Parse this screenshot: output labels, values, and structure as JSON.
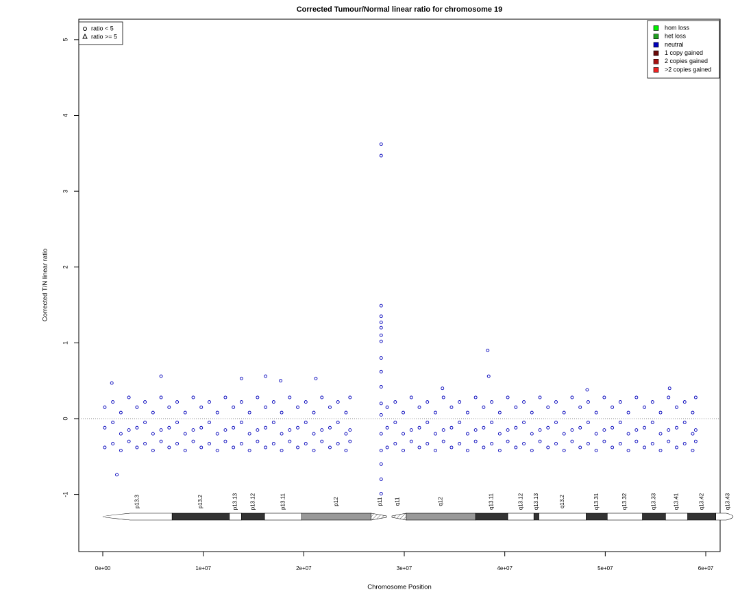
{
  "chart_data": {
    "type": "scatter",
    "title": "Corrected Tumour/Normal linear ratio for chromosome  19",
    "x_label": "Chromosome Position",
    "y_label": "Corrected T/N linear ratio",
    "xlim": [
      -2386000,
      61430000
    ],
    "ylim": [
      -1.754,
      5.27
    ],
    "xticks": [
      {
        "value": 0,
        "label": "0e+00"
      },
      {
        "value": 10000000,
        "label": "1e+07"
      },
      {
        "value": 20000000,
        "label": "2e+07"
      },
      {
        "value": 30000000,
        "label": "3e+07"
      },
      {
        "value": 40000000,
        "label": "4e+07"
      },
      {
        "value": 50000000,
        "label": "5e+07"
      },
      {
        "value": 60000000,
        "label": "6e+07"
      }
    ],
    "yticks": [
      -1,
      0,
      1,
      2,
      3,
      4,
      5
    ],
    "hline": 0,
    "shape_legend": [
      "ratio < 5",
      "ratio >= 5"
    ],
    "series": [
      {
        "name": "hom loss",
        "color": "#00ee00",
        "x": [],
        "values": []
      },
      {
        "name": "het loss",
        "color": "#1f9f1f",
        "x": [],
        "values": []
      },
      {
        "name": "neutral",
        "color": "#0000bb",
        "x": [
          200000.0,
          200000.0,
          200000.0,
          1000000.0,
          1000000.0,
          1000000.0,
          1800000.0,
          1800000.0,
          1800000.0,
          2600000.0,
          2600000.0,
          2600000.0,
          3400000.0,
          3400000.0,
          3400000.0,
          4200000.0,
          4200000.0,
          4200000.0,
          5000000.0,
          5000000.0,
          5000000.0,
          5800000.0,
          5800000.0,
          5800000.0,
          6600000.0,
          6600000.0,
          6600000.0,
          7400000.0,
          7400000.0,
          7400000.0,
          8200000.0,
          8200000.0,
          8200000.0,
          9000000.0,
          9000000.0,
          9000000.0,
          9800000.0,
          9800000.0,
          9800000.0,
          10600000.0,
          10600000.0,
          10600000.0,
          11400000.0,
          11400000.0,
          11400000.0,
          12200000.0,
          12200000.0,
          12200000.0,
          13000000.0,
          13000000.0,
          13000000.0,
          13800000.0,
          13800000.0,
          13800000.0,
          14600000.0,
          14600000.0,
          14600000.0,
          15400000.0,
          15400000.0,
          15400000.0,
          16200000.0,
          16200000.0,
          16200000.0,
          17000000.0,
          17000000.0,
          17000000.0,
          17800000.0,
          17800000.0,
          17800000.0,
          18600000.0,
          18600000.0,
          18600000.0,
          19400000.0,
          19400000.0,
          19400000.0,
          20200000.0,
          20200000.0,
          20200000.0,
          21000000.0,
          21000000.0,
          21000000.0,
          21800000.0,
          21800000.0,
          21800000.0,
          22600000.0,
          22600000.0,
          22600000.0,
          23400000.0,
          23400000.0,
          23400000.0,
          24200000.0,
          24200000.0,
          24200000.0,
          24600000.0,
          24600000.0,
          24600000.0,
          28300000.0,
          28300000.0,
          28300000.0,
          29100000.0,
          29100000.0,
          29100000.0,
          29900000.0,
          29900000.0,
          29900000.0,
          30700000.0,
          30700000.0,
          30700000.0,
          31500000.0,
          31500000.0,
          31500000.0,
          32300000.0,
          32300000.0,
          32300000.0,
          33100000.0,
          33100000.0,
          33100000.0,
          33900000.0,
          33900000.0,
          33900000.0,
          34700000.0,
          34700000.0,
          34700000.0,
          35500000.0,
          35500000.0,
          35500000.0,
          36300000.0,
          36300000.0,
          36300000.0,
          37100000.0,
          37100000.0,
          37100000.0,
          37900000.0,
          37900000.0,
          37900000.0,
          38700000.0,
          38700000.0,
          38700000.0,
          39500000.0,
          39500000.0,
          39500000.0,
          40300000.0,
          40300000.0,
          40300000.0,
          41100000.0,
          41100000.0,
          41100000.0,
          41900000.0,
          41900000.0,
          41900000.0,
          42700000.0,
          42700000.0,
          42700000.0,
          43500000.0,
          43500000.0,
          43500000.0,
          44300000.0,
          44300000.0,
          44300000.0,
          45100000.0,
          45100000.0,
          45100000.0,
          45900000.0,
          45900000.0,
          45900000.0,
          46700000.0,
          46700000.0,
          46700000.0,
          47500000.0,
          47500000.0,
          47500000.0,
          48300000.0,
          48300000.0,
          48300000.0,
          49100000.0,
          49100000.0,
          49100000.0,
          49900000.0,
          49900000.0,
          49900000.0,
          50700000.0,
          50700000.0,
          50700000.0,
          51500000.0,
          51500000.0,
          51500000.0,
          52300000.0,
          52300000.0,
          52300000.0,
          53100000.0,
          53100000.0,
          53100000.0,
          53900000.0,
          53900000.0,
          53900000.0,
          54700000.0,
          54700000.0,
          54700000.0,
          55500000.0,
          55500000.0,
          55500000.0,
          56300000.0,
          56300000.0,
          56300000.0,
          57100000.0,
          57100000.0,
          57100000.0,
          57900000.0,
          57900000.0,
          57900000.0,
          58700000.0,
          58700000.0,
          58700000.0,
          59000000.0,
          59000000.0,
          59000000.0,
          27700000.0,
          27700000.0,
          27700000.0,
          27700000.0,
          27700000.0,
          27700000.0,
          27700000.0,
          27700000.0,
          27700000.0,
          27700000.0,
          27700000.0,
          27700000.0,
          27700000.0,
          27700000.0,
          27700000.0,
          27700000.0,
          27700000.0,
          27700000.0,
          1400000.0,
          900000.0,
          5800000.0,
          13800000.0,
          16200000.0,
          21200000.0,
          17700000.0,
          33800000.0,
          38300000.0,
          38400000.0,
          48200000.0,
          56400000.0
        ],
        "values": [
          0.15,
          -0.12,
          -0.38,
          0.22,
          -0.05,
          -0.33,
          0.08,
          -0.2,
          -0.42,
          0.28,
          -0.15,
          -0.3,
          0.15,
          -0.12,
          -0.38,
          0.22,
          -0.05,
          -0.33,
          0.08,
          -0.2,
          -0.42,
          0.28,
          -0.15,
          -0.3,
          0.15,
          -0.12,
          -0.38,
          0.22,
          -0.05,
          -0.33,
          0.08,
          -0.2,
          -0.42,
          0.28,
          -0.15,
          -0.3,
          0.15,
          -0.12,
          -0.38,
          0.22,
          -0.05,
          -0.33,
          0.08,
          -0.2,
          -0.42,
          0.28,
          -0.15,
          -0.3,
          0.15,
          -0.12,
          -0.38,
          0.22,
          -0.05,
          -0.33,
          0.08,
          -0.2,
          -0.42,
          0.28,
          -0.15,
          -0.3,
          0.15,
          -0.12,
          -0.38,
          0.22,
          -0.05,
          -0.33,
          0.08,
          -0.2,
          -0.42,
          0.28,
          -0.15,
          -0.3,
          0.15,
          -0.12,
          -0.38,
          0.22,
          -0.05,
          -0.33,
          0.08,
          -0.2,
          -0.42,
          0.28,
          -0.15,
          -0.3,
          0.15,
          -0.12,
          -0.38,
          0.22,
          -0.05,
          -0.33,
          0.08,
          -0.2,
          -0.42,
          0.28,
          -0.15,
          -0.3,
          0.15,
          -0.12,
          -0.38,
          0.22,
          -0.05,
          -0.33,
          0.08,
          -0.2,
          -0.42,
          0.28,
          -0.15,
          -0.3,
          0.15,
          -0.12,
          -0.38,
          0.22,
          -0.05,
          -0.33,
          0.08,
          -0.2,
          -0.42,
          0.28,
          -0.15,
          -0.3,
          0.15,
          -0.12,
          -0.38,
          0.22,
          -0.05,
          -0.33,
          0.08,
          -0.2,
          -0.42,
          0.28,
          -0.15,
          -0.3,
          0.15,
          -0.12,
          -0.38,
          0.22,
          -0.05,
          -0.33,
          0.08,
          -0.2,
          -0.42,
          0.28,
          -0.15,
          -0.3,
          0.15,
          -0.12,
          -0.38,
          0.22,
          -0.05,
          -0.33,
          0.08,
          -0.2,
          -0.42,
          0.28,
          -0.15,
          -0.3,
          0.15,
          -0.12,
          -0.38,
          0.22,
          -0.05,
          -0.33,
          0.08,
          -0.2,
          -0.42,
          0.28,
          -0.15,
          -0.3,
          0.15,
          -0.12,
          -0.38,
          0.22,
          -0.05,
          -0.33,
          0.08,
          -0.2,
          -0.42,
          0.28,
          -0.15,
          -0.3,
          0.15,
          -0.12,
          -0.38,
          0.22,
          -0.05,
          -0.33,
          0.08,
          -0.2,
          -0.42,
          0.28,
          -0.15,
          -0.3,
          0.15,
          -0.12,
          -0.38,
          0.22,
          -0.05,
          -0.33,
          0.08,
          -0.2,
          -0.42,
          0.28,
          -0.15,
          -0.3,
          0.15,
          -0.12,
          -0.38,
          0.22,
          -0.05,
          -0.33,
          0.08,
          -0.2,
          -0.42,
          0.28,
          -0.15,
          -0.3,
          3.62,
          3.47,
          1.49,
          1.35,
          1.27,
          1.2,
          1.1,
          1.02,
          0.8,
          0.62,
          0.42,
          0.2,
          0.05,
          -0.2,
          -0.42,
          -0.6,
          -0.8,
          -0.99,
          -0.74,
          0.47,
          0.56,
          0.53,
          0.56,
          0.53,
          0.5,
          0.4,
          0.9,
          0.56,
          0.38,
          0.4
        ]
      },
      {
        "name": "1 copy gained",
        "color": "#6b0a0a",
        "x": [],
        "values": []
      },
      {
        "name": "2 copies gained",
        "color": "#a81414",
        "x": [],
        "values": []
      },
      {
        "name": ">2 copies gained",
        "color": "#ee2222",
        "x": [],
        "values": []
      }
    ],
    "ideogram": [
      {
        "name": "p13.3",
        "start": 0,
        "end": 6900000,
        "stain": "#ffffff"
      },
      {
        "name": "p13.2",
        "start": 6900000,
        "end": 12600000,
        "stain": "#333333"
      },
      {
        "name": "p13.13",
        "start": 12600000,
        "end": 13800000,
        "stain": "#ffffff"
      },
      {
        "name": "p13.12",
        "start": 13800000,
        "end": 16100000,
        "stain": "#333333"
      },
      {
        "name": "p13.11",
        "start": 16100000,
        "end": 19800000,
        "stain": "#ffffff"
      },
      {
        "name": "p12",
        "start": 19800000,
        "end": 26700000,
        "stain": "#999999"
      },
      {
        "name": "p11",
        "start": 26700000,
        "end": 28500000,
        "stain": "acen"
      },
      {
        "name": "q11",
        "start": 28500000,
        "end": 30200000,
        "stain": "acen"
      },
      {
        "name": "q12",
        "start": 30200000,
        "end": 37100000,
        "stain": "#999999"
      },
      {
        "name": "q13.11",
        "start": 37100000,
        "end": 40300000,
        "stain": "#333333"
      },
      {
        "name": "q13.12",
        "start": 40300000,
        "end": 42900000,
        "stain": "#ffffff"
      },
      {
        "name": "q13.13",
        "start": 42900000,
        "end": 43400000,
        "stain": "#333333"
      },
      {
        "name": "q13.2",
        "start": 43400000,
        "end": 48100000,
        "stain": "#ffffff"
      },
      {
        "name": "q13.31",
        "start": 48100000,
        "end": 50200000,
        "stain": "#333333"
      },
      {
        "name": "q13.32",
        "start": 50200000,
        "end": 53700000,
        "stain": "#ffffff"
      },
      {
        "name": "q13.33",
        "start": 53700000,
        "end": 56000000,
        "stain": "#333333"
      },
      {
        "name": "q13.41",
        "start": 56000000,
        "end": 58200000,
        "stain": "#ffffff"
      },
      {
        "name": "q13.42",
        "start": 58200000,
        "end": 61000000,
        "stain": "#333333"
      },
      {
        "name": "q13.43",
        "start": 61000000,
        "end": 63400000,
        "stain": "#ffffff"
      }
    ]
  }
}
